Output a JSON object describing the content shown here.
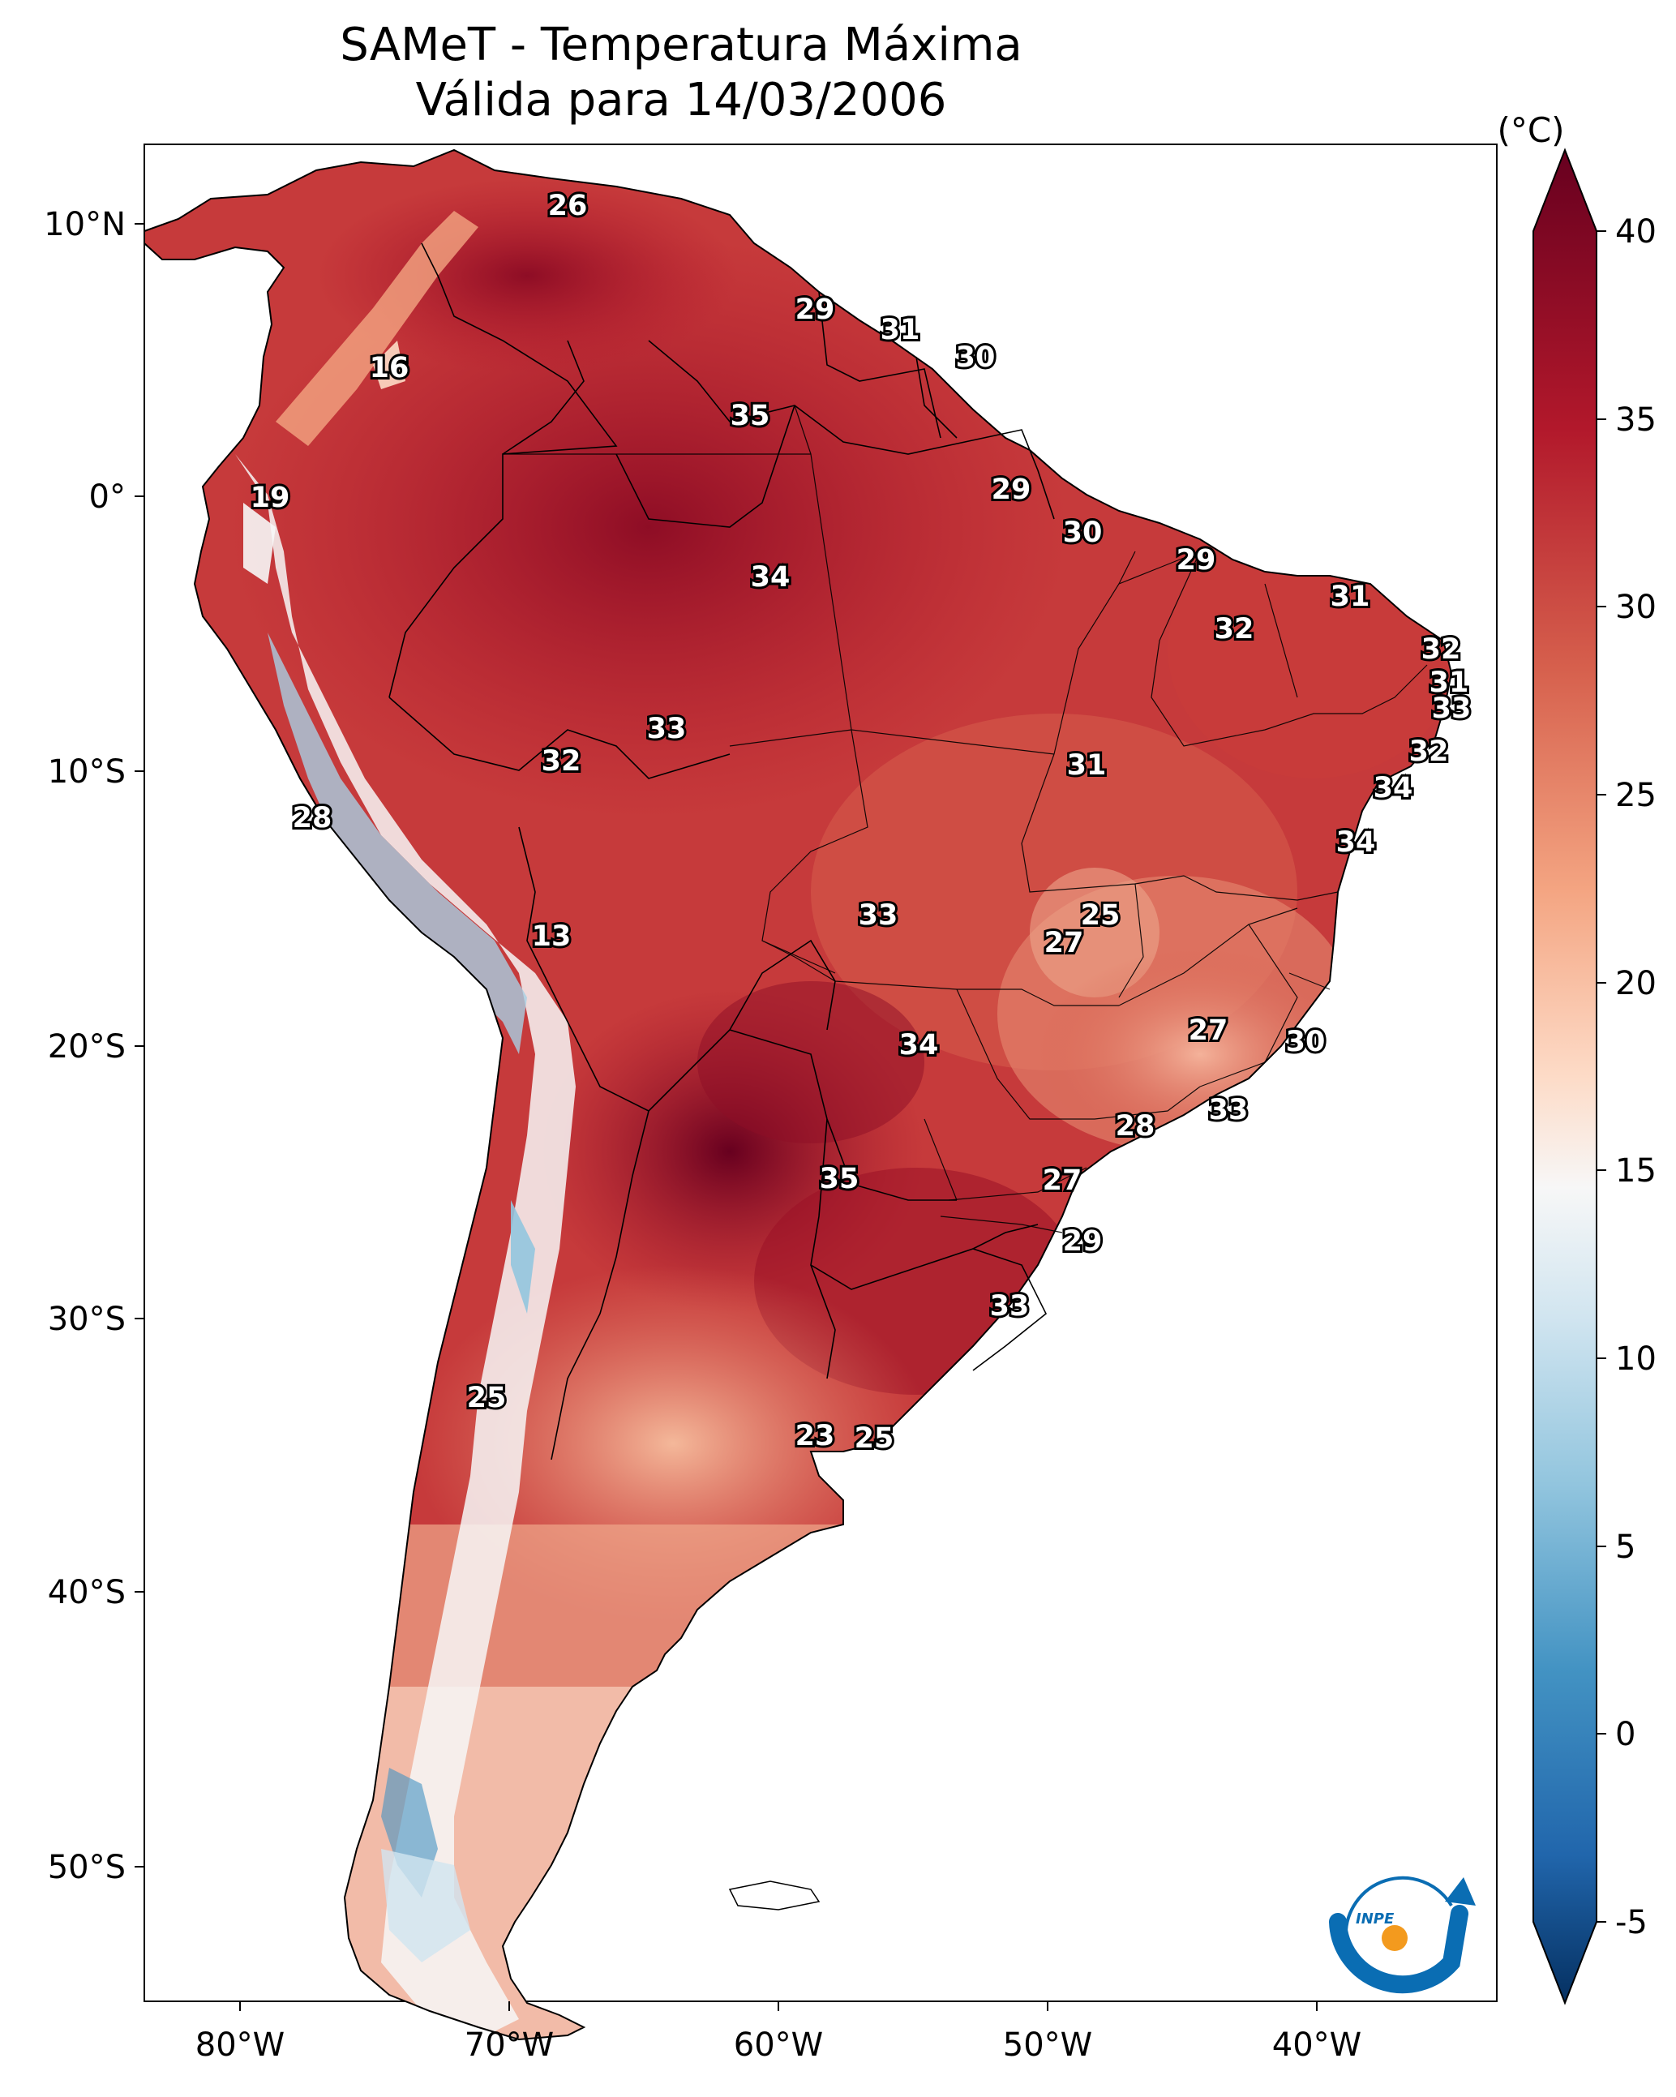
{
  "title": {
    "line1": "SAMeT - Temperatura Máxima",
    "line2": "Válida para 14/03/2006"
  },
  "map": {
    "lon_labels": [
      "80°W",
      "70°W",
      "60°W",
      "50°W",
      "40°W"
    ],
    "lat_labels": [
      "10°N",
      "0°",
      "10°S",
      "20°S",
      "30°S",
      "40°S",
      "50°S"
    ],
    "temperature_labels": [
      "26",
      "29",
      "31",
      "30",
      "16",
      "35",
      "19",
      "29",
      "30",
      "29",
      "34",
      "31",
      "32",
      "32",
      "31",
      "33",
      "33",
      "32",
      "32",
      "31",
      "28",
      "34",
      "34",
      "13",
      "33",
      "25",
      "27",
      "27",
      "30",
      "34",
      "33",
      "28",
      "35",
      "27",
      "29",
      "33",
      "25",
      "23",
      "25"
    ]
  },
  "colorbar": {
    "unit": "(°C)",
    "tick_labels": [
      "40",
      "35",
      "30",
      "25",
      "20",
      "15",
      "10",
      "5",
      "0",
      "-5"
    ],
    "colors": [
      "#67001f",
      "#b2182b",
      "#d6604d",
      "#f4a582",
      "#fddbc7",
      "#f7f7f7",
      "#d1e5f0",
      "#92c5de",
      "#4393c3",
      "#2166ac",
      "#053061"
    ]
  },
  "logo": {
    "text": "INPE",
    "colors": [
      "#0a6db3",
      "#f39a1e"
    ]
  }
}
